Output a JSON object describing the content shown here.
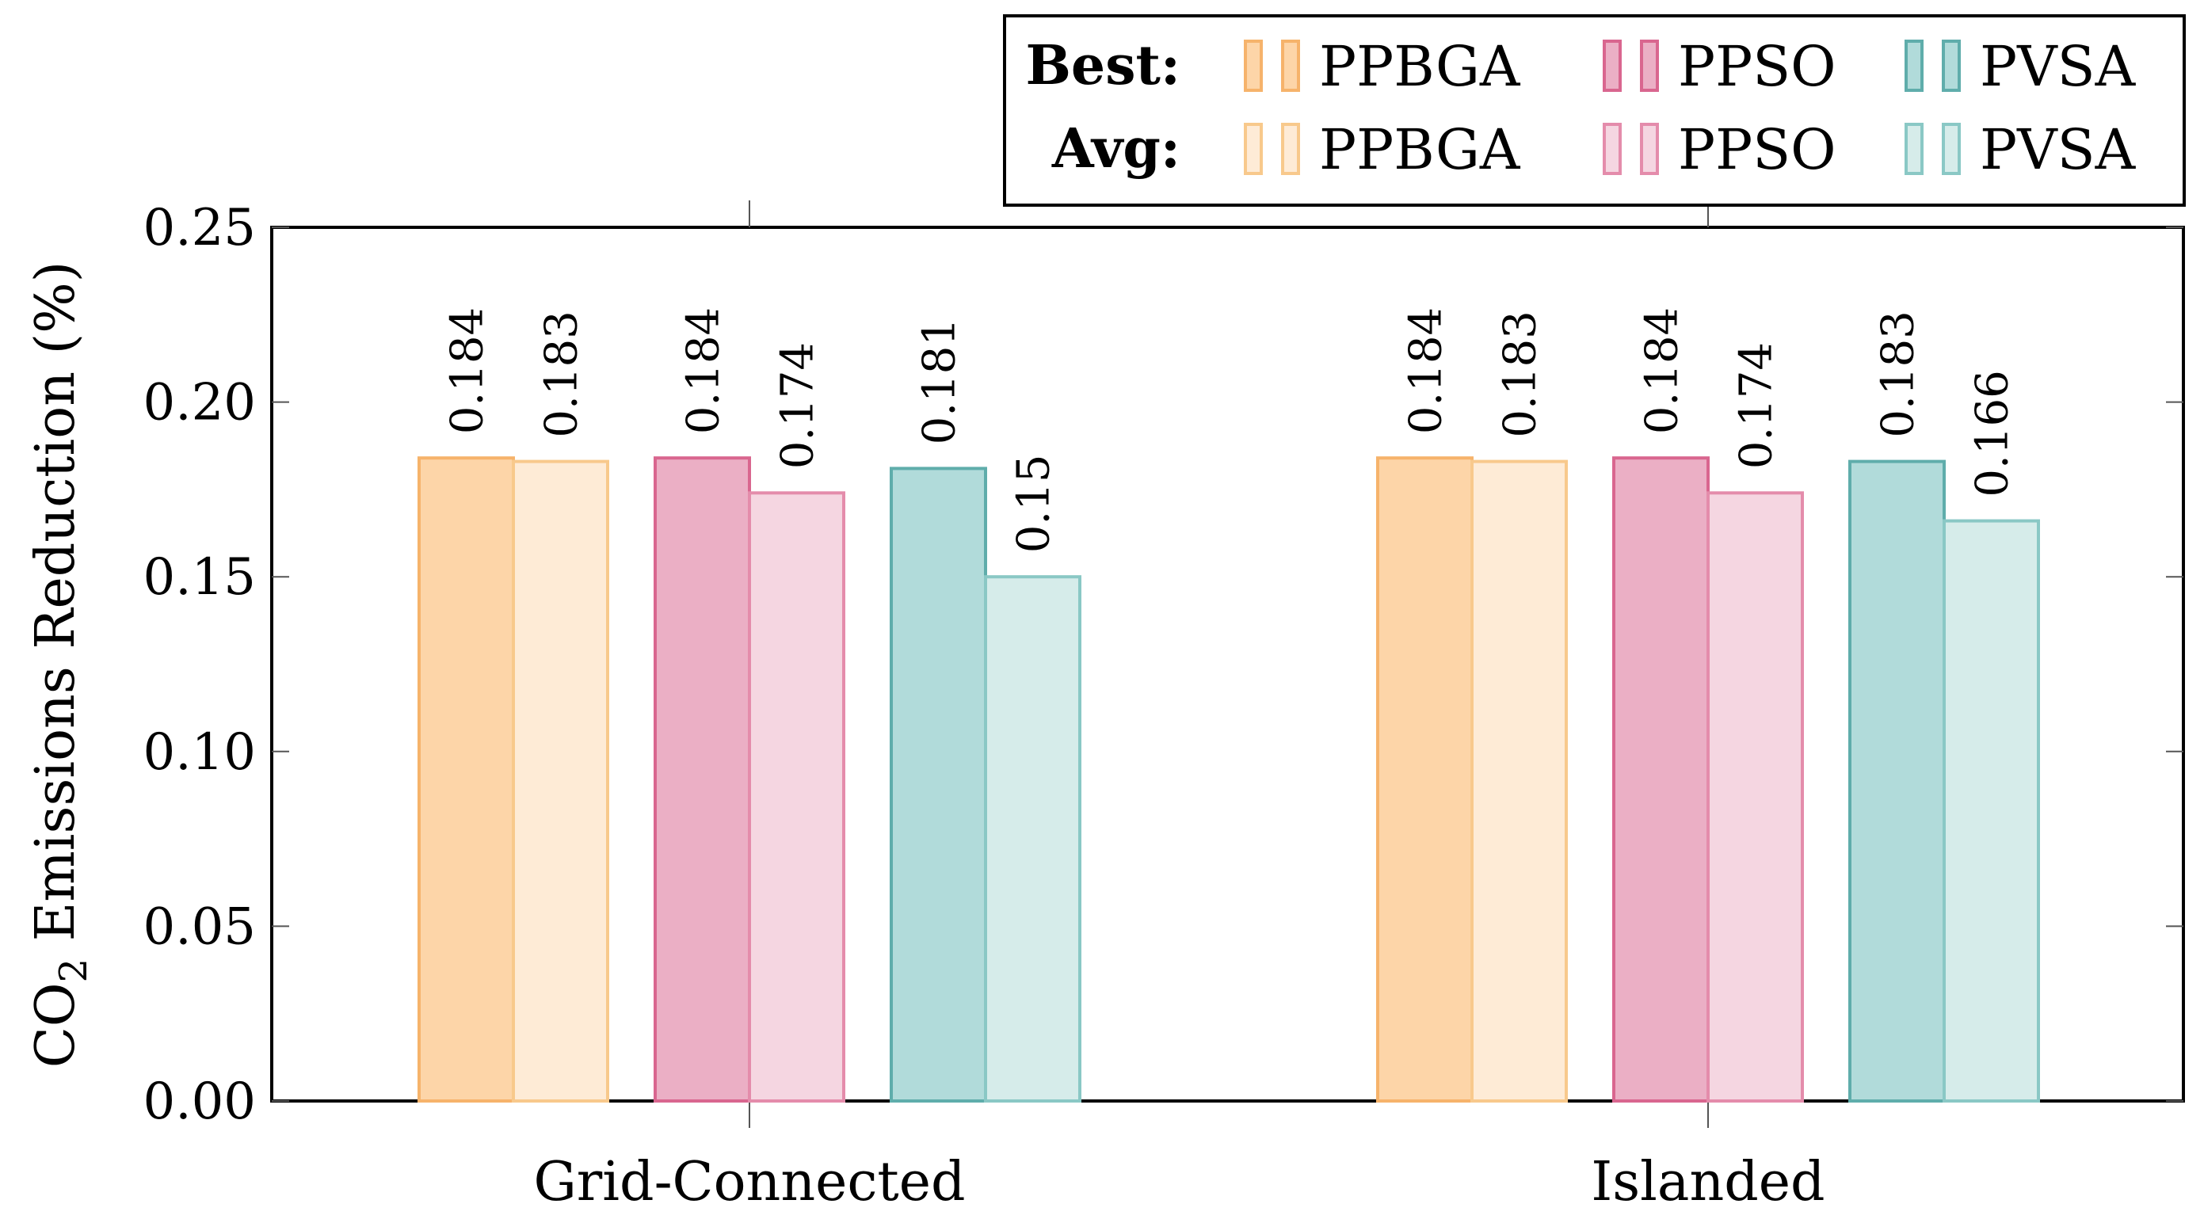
{
  "chart_data": {
    "type": "bar",
    "categories": [
      "Grid-Connected",
      "Islanded"
    ],
    "ylabel_main": "CO",
    "ylabel_sub": "2",
    "ylabel_rest": " Emissions Reduction (%)",
    "ylim": [
      0,
      0.25
    ],
    "yticks": [
      "0.00",
      "0.05",
      "0.10",
      "0.15",
      "0.20",
      "0.25"
    ],
    "ytick_values": [
      0,
      0.05,
      0.1,
      0.15,
      0.2,
      0.25
    ],
    "grid": false,
    "legend_position": "top-right",
    "legend": {
      "rows": [
        {
          "label": "Best:",
          "items": [
            "PPBGA",
            "PPSO",
            "PVSA"
          ]
        },
        {
          "label": "Avg:",
          "items": [
            "PPBGA",
            "PPSO",
            "PVSA"
          ]
        }
      ]
    },
    "series": [
      {
        "name": "PPBGA",
        "stat": "Best",
        "values": [
          0.184,
          0.184
        ],
        "labels": [
          "0.184",
          "0.184"
        ],
        "fill": "#fdd5a8",
        "stroke": "#f6b36b"
      },
      {
        "name": "PPBGA",
        "stat": "Avg",
        "values": [
          0.183,
          0.183
        ],
        "labels": [
          "0.183",
          "0.183"
        ],
        "fill": "#feebd6",
        "stroke": "#f8c98c"
      },
      {
        "name": "PPSO",
        "stat": "Best",
        "values": [
          0.184,
          0.184
        ],
        "labels": [
          "0.184",
          "0.184"
        ],
        "fill": "#ebafc5",
        "stroke": "#d9668f"
      },
      {
        "name": "PPSO",
        "stat": "Avg",
        "values": [
          0.174,
          0.174
        ],
        "labels": [
          "0.174",
          "0.174"
        ],
        "fill": "#f5d6e1",
        "stroke": "#e48cab"
      },
      {
        "name": "PVSA",
        "stat": "Best",
        "values": [
          0.181,
          0.183
        ],
        "labels": [
          "0.181",
          "0.183"
        ],
        "fill": "#b1dbda",
        "stroke": "#5fadab"
      },
      {
        "name": "PVSA",
        "stat": "Avg",
        "values": [
          0.15,
          0.166
        ],
        "labels": [
          "0.15",
          "0.166"
        ],
        "fill": "#d6ecea",
        "stroke": "#8ac8c5"
      }
    ]
  }
}
